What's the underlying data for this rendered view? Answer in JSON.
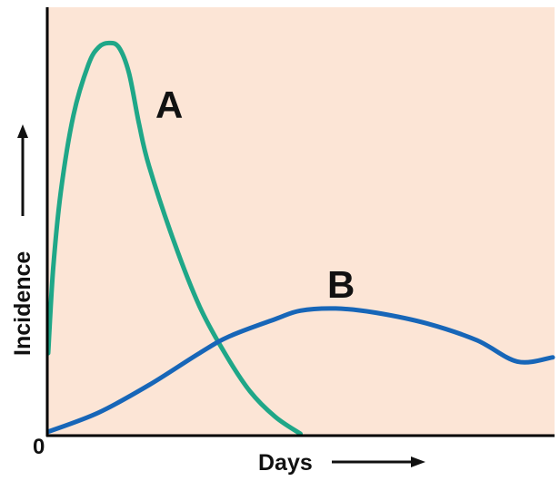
{
  "chart_data": {
    "type": "line",
    "xlabel": "Days",
    "ylabel": "Incidence",
    "origin_label": "0",
    "xlim": [
      0,
      100
    ],
    "ylim": [
      0,
      100
    ],
    "grid": false,
    "legend": "none",
    "background_color": "#fce5d6",
    "series": [
      {
        "name": "A",
        "color": "#1fa788",
        "x": [
          0,
          1,
          2.5,
          5,
          8,
          10,
          12,
          14,
          16,
          18,
          20,
          25,
          30,
          35,
          40,
          45,
          50
        ],
        "y": [
          19,
          39,
          57,
          75,
          87,
          91,
          92,
          91,
          85,
          73,
          63,
          45,
          30,
          19,
          10,
          4,
          0
        ]
      },
      {
        "name": "B",
        "color": "#1766b8",
        "x": [
          0,
          10,
          20,
          30,
          36,
          45,
          50,
          57,
          65,
          75,
          85,
          93,
          100
        ],
        "y": [
          0.5,
          5,
          11.5,
          19,
          23,
          27,
          29,
          29.5,
          28.5,
          26,
          22,
          17,
          18
        ]
      }
    ]
  }
}
